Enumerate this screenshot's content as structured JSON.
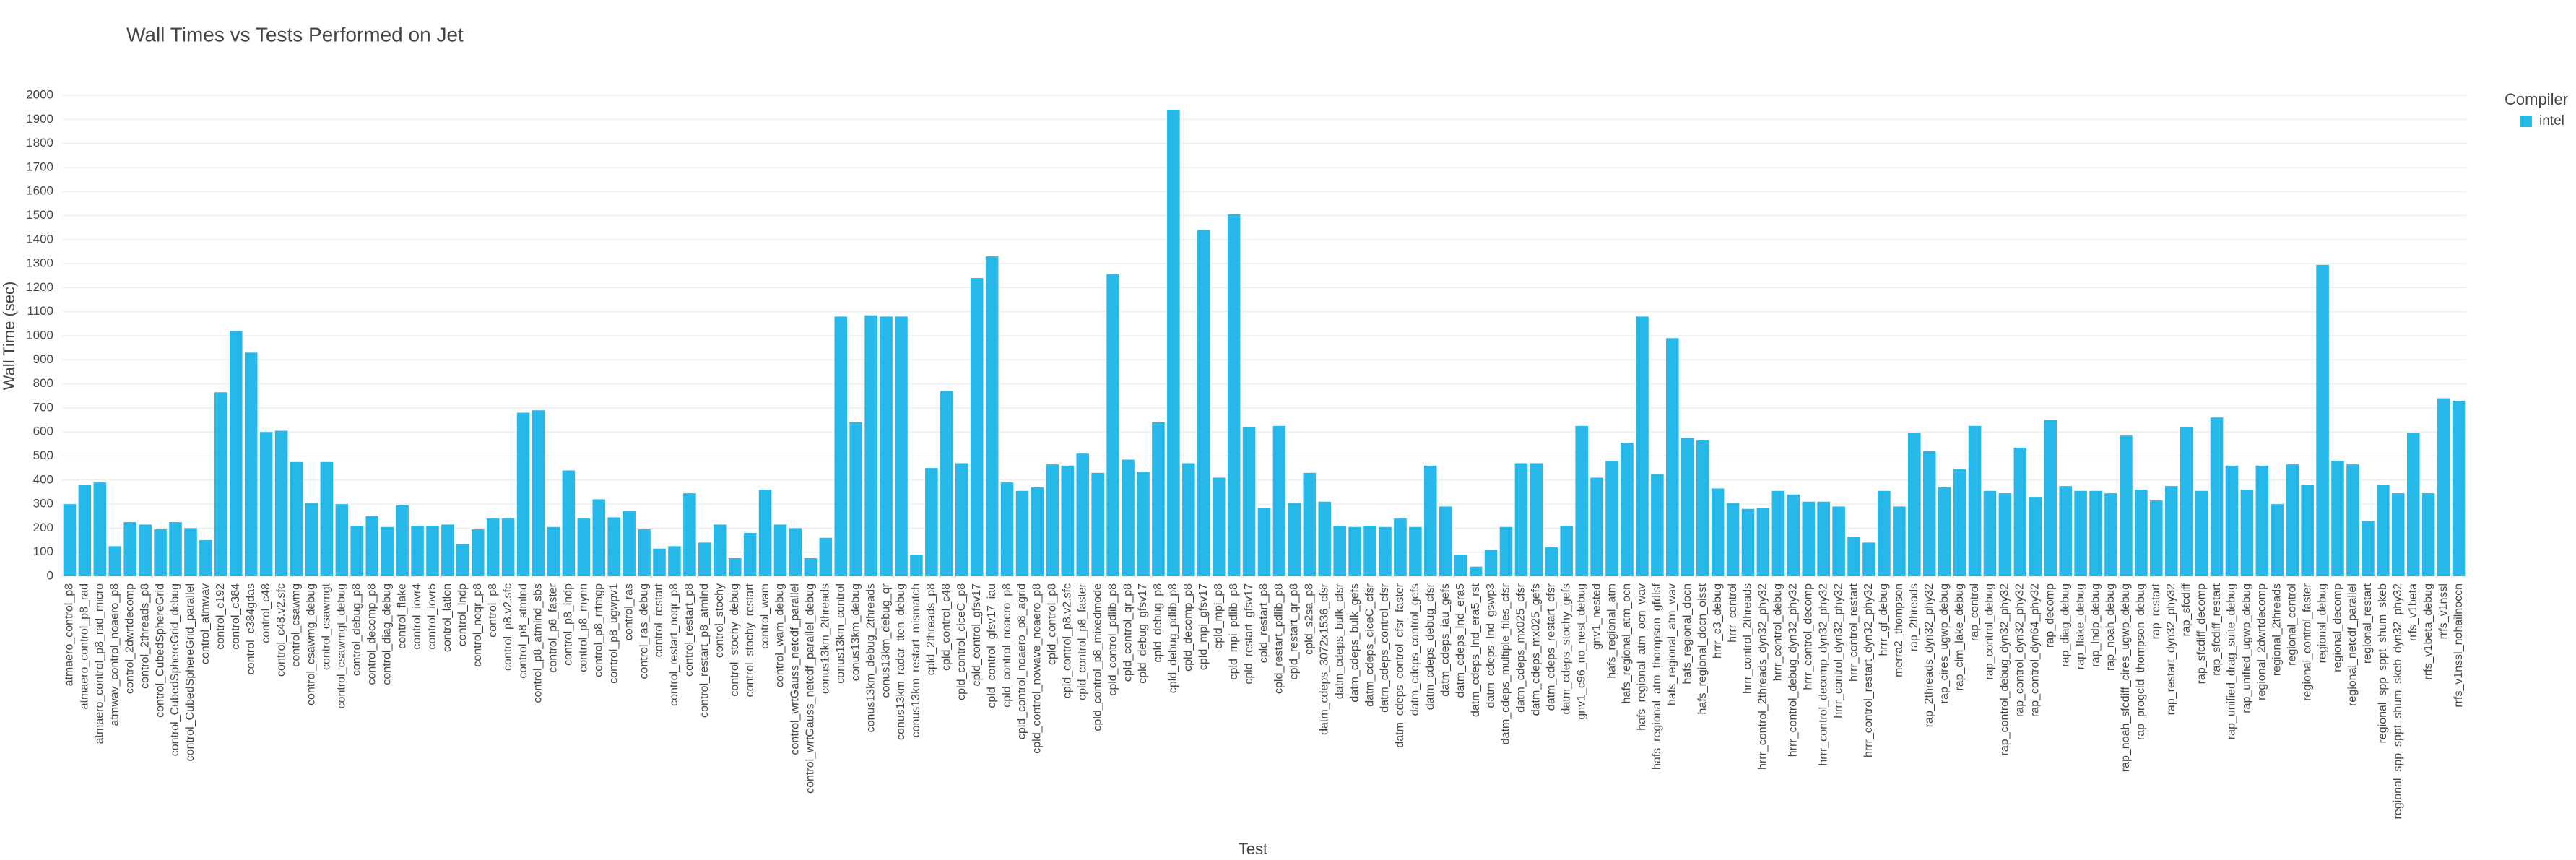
{
  "chart_data": {
    "type": "bar",
    "title": "Wall Times vs Tests Performed on Jet",
    "xlabel": "Test",
    "ylabel": "Wall Time (sec)",
    "legend_title": "Compiler",
    "legend": "right",
    "grid": true,
    "ylim": [
      0,
      2000
    ],
    "yticks": [
      0,
      100,
      200,
      300,
      400,
      500,
      600,
      700,
      800,
      900,
      1000,
      1100,
      1200,
      1300,
      1400,
      1500,
      1600,
      1700,
      1800,
      1900,
      2000
    ],
    "categories": [
      "atmaero_control_p8",
      "atmaero_control_p8_rad",
      "atmaero_control_p8_rad_micro",
      "atmwav_control_noaero_p8",
      "control_2dwrtdecomp",
      "control_2threads_p8",
      "control_CubedSphereGrid",
      "control_CubedSphereGrid_debug",
      "control_CubedSphereGrid_parallel",
      "control_atmwav",
      "control_c192",
      "control_c384",
      "control_c384gdas",
      "control_c48",
      "control_c48.v2.sfc",
      "control_csawmg",
      "control_csawmg_debug",
      "control_csawmgt",
      "control_csawmgt_debug",
      "control_debug_p8",
      "control_decomp_p8",
      "control_diag_debug",
      "control_flake",
      "control_iovr4",
      "control_iovr5",
      "control_latlon",
      "control_lndp",
      "control_noqr_p8",
      "control_p8",
      "control_p8.v2.sfc",
      "control_p8_atmlnd",
      "control_p8_atmlnd_sbs",
      "control_p8_faster",
      "control_p8_lndp",
      "control_p8_mynn",
      "control_p8_rrtmgp",
      "control_p8_ugwpv1",
      "control_ras",
      "control_ras_debug",
      "control_restart",
      "control_restart_noqr_p8",
      "control_restart_p8",
      "control_restart_p8_atmlnd",
      "control_stochy",
      "control_stochy_debug",
      "control_stochy_restart",
      "control_wam",
      "control_wam_debug",
      "control_wrtGauss_netcdf_parallel",
      "control_wrtGauss_netcdf_parallel_debug",
      "conus13km_2threads",
      "conus13km_control",
      "conus13km_debug",
      "conus13km_debug_2threads",
      "conus13km_debug_qr",
      "conus13km_radar_tten_debug",
      "conus13km_restart_mismatch",
      "cpld_2threads_p8",
      "cpld_control_c48",
      "cpld_control_ciceC_p8",
      "cpld_control_gfsv17",
      "cpld_control_gfsv17_iau",
      "cpld_control_noaero_p8",
      "cpld_control_noaero_p8_agrid",
      "cpld_control_nowave_noaero_p8",
      "cpld_control_p8",
      "cpld_control_p8.v2.sfc",
      "cpld_control_p8_faster",
      "cpld_control_p8_mixedmode",
      "cpld_control_pdlib_p8",
      "cpld_control_qr_p8",
      "cpld_debug_gfsv17",
      "cpld_debug_p8",
      "cpld_debug_pdlib_p8",
      "cpld_decomp_p8",
      "cpld_mpi_gfsv17",
      "cpld_mpi_p8",
      "cpld_mpi_pdlib_p8",
      "cpld_restart_gfsv17",
      "cpld_restart_p8",
      "cpld_restart_pdlib_p8",
      "cpld_restart_qr_p8",
      "cpld_s2sa_p8",
      "datm_cdeps_3072x1536_cfsr",
      "datm_cdeps_bulk_cfsr",
      "datm_cdeps_bulk_gefs",
      "datm_cdeps_ciceC_cfsr",
      "datm_cdeps_control_cfsr",
      "datm_cdeps_control_cfsr_faster",
      "datm_cdeps_control_gefs",
      "datm_cdeps_debug_cfsr",
      "datm_cdeps_iau_gefs",
      "datm_cdeps_lnd_era5",
      "datm_cdeps_lnd_era5_rst",
      "datm_cdeps_lnd_gswp3",
      "datm_cdeps_multiple_files_cfsr",
      "datm_cdeps_mx025_cfsr",
      "datm_cdeps_mx025_gefs",
      "datm_cdeps_restart_cfsr",
      "datm_cdeps_stochy_gefs",
      "gnv1_c96_no_nest_debug",
      "gnv1_nested",
      "hafs_regional_atm",
      "hafs_regional_atm_ocn",
      "hafs_regional_atm_ocn_wav",
      "hafs_regional_atm_thompson_gfdlsf",
      "hafs_regional_atm_wav",
      "hafs_regional_docn",
      "hafs_regional_docn_oisst",
      "hrrr_c3_debug",
      "hrrr_control",
      "hrrr_control_2threads",
      "hrrr_control_2threads_dyn32_phy32",
      "hrrr_control_debug",
      "hrrr_control_debug_dyn32_phy32",
      "hrrr_control_decomp",
      "hrrr_control_decomp_dyn32_phy32",
      "hrrr_control_dyn32_phy32",
      "hrrr_control_restart",
      "hrrr_control_restart_dyn32_phy32",
      "hrrr_gf_debug",
      "merra2_thompson",
      "rap_2threads",
      "rap_2threads_dyn32_phy32",
      "rap_cires_ugwp_debug",
      "rap_clm_lake_debug",
      "rap_control",
      "rap_control_debug",
      "rap_control_debug_dyn32_phy32",
      "rap_control_dyn32_phy32",
      "rap_control_dyn64_phy32",
      "rap_decomp",
      "rap_diag_debug",
      "rap_flake_debug",
      "rap_lndp_debug",
      "rap_noah_debug",
      "rap_noah_sfcdiff_cires_ugwp_debug",
      "rap_progcld_thompson_debug",
      "rap_restart",
      "rap_restart_dyn32_phy32",
      "rap_sfcdiff",
      "rap_sfcdiff_decomp",
      "rap_sfcdiff_restart",
      "rap_unified_drag_suite_debug",
      "rap_unified_ugwp_debug",
      "regional_2dwrtdecomp",
      "regional_2threads",
      "regional_control",
      "regional_control_faster",
      "regional_debug",
      "regional_decomp",
      "regional_netcdf_parallel",
      "regional_restart",
      "regional_spp_sppt_shum_skeb",
      "regional_spp_sppt_shum_skeb_dyn32_phy32",
      "rrfs_v1beta",
      "rrfs_v1beta_debug",
      "rrfs_v1nssl",
      "rrfs_v1nssl_nohailnoccn"
    ],
    "series": [
      {
        "name": "intel",
        "color": "#27b8ea",
        "values": [
          300,
          380,
          390,
          125,
          225,
          215,
          195,
          225,
          200,
          150,
          765,
          1020,
          930,
          600,
          605,
          475,
          305,
          475,
          300,
          210,
          250,
          205,
          295,
          210,
          210,
          215,
          135,
          195,
          240,
          240,
          680,
          690,
          205,
          440,
          240,
          320,
          245,
          270,
          195,
          115,
          125,
          345,
          140,
          215,
          75,
          180,
          360,
          215,
          200,
          75,
          160,
          1080,
          640,
          1085,
          1080,
          1080,
          90,
          450,
          770,
          470,
          1240,
          1330,
          390,
          355,
          370,
          465,
          460,
          510,
          430,
          1255,
          485,
          435,
          640,
          1940,
          470,
          1440,
          410,
          1505,
          620,
          285,
          625,
          305,
          430,
          310,
          210,
          205,
          210,
          205,
          240,
          205,
          460,
          290,
          90,
          40,
          110,
          205,
          470,
          470,
          120,
          210,
          625,
          410,
          480,
          555,
          1080,
          425,
          990,
          575,
          565,
          365,
          305,
          280,
          285,
          355,
          340,
          310,
          310,
          290,
          165,
          140,
          355,
          290,
          595,
          520,
          370,
          445,
          625,
          355,
          345,
          535,
          330,
          650,
          375,
          355,
          355,
          345,
          585,
          360,
          315,
          375,
          620,
          355,
          660,
          460,
          360,
          460,
          300,
          465,
          380,
          1295,
          480,
          465,
          230,
          380,
          345,
          595,
          345,
          740,
          730
        ]
      }
    ]
  }
}
